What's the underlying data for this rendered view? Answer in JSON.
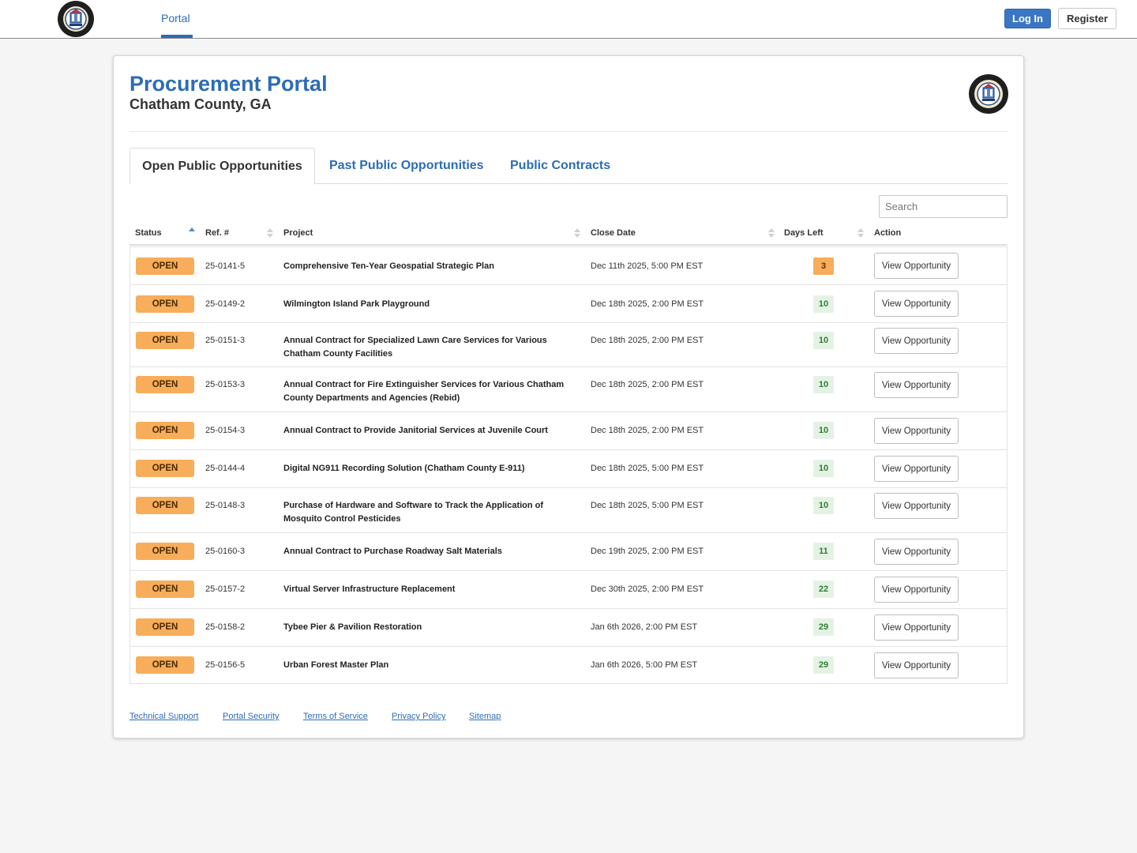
{
  "nav": {
    "portal_label": "Portal",
    "login_label": "Log In",
    "register_label": "Register"
  },
  "header": {
    "title": "Procurement Portal",
    "subtitle": "Chatham County, GA"
  },
  "tabs": [
    {
      "label": "Open Public Opportunities",
      "active": true
    },
    {
      "label": "Past Public Opportunities",
      "active": false
    },
    {
      "label": "Public Contracts",
      "active": false
    }
  ],
  "search": {
    "placeholder": "Search"
  },
  "table": {
    "columns": [
      "Status",
      "Ref. #",
      "Project",
      "Close Date",
      "Days Left",
      "Action"
    ],
    "sorted_column": "Status",
    "sort_direction": "ascending",
    "rows": [
      {
        "status": "OPEN",
        "ref": "25-0141-5",
        "project": "Comprehensive Ten-Year Geospatial Strategic Plan",
        "close_date": "Dec 11th 2025, 5:00 PM EST",
        "days_left": "3",
        "action": "View Opportunity"
      },
      {
        "status": "OPEN",
        "ref": "25-0149-2",
        "project": "Wilmington Island Park Playground",
        "close_date": "Dec 18th 2025, 2:00 PM EST",
        "days_left": "10",
        "action": "View Opportunity"
      },
      {
        "status": "OPEN",
        "ref": "25-0151-3",
        "project": "Annual Contract for Specialized Lawn Care Services for Various Chatham County Facilities",
        "close_date": "Dec 18th 2025, 2:00 PM EST",
        "days_left": "10",
        "action": "View Opportunity"
      },
      {
        "status": "OPEN",
        "ref": "25-0153-3",
        "project": "Annual Contract for Fire Extinguisher Services for Various Chatham County Departments and Agencies (Rebid)",
        "close_date": "Dec 18th 2025, 2:00 PM EST",
        "days_left": "10",
        "action": "View Opportunity"
      },
      {
        "status": "OPEN",
        "ref": "25-0154-3",
        "project": "Annual Contract to Provide Janitorial Services at Juvenile Court",
        "close_date": "Dec 18th 2025, 2:00 PM EST",
        "days_left": "10",
        "action": "View Opportunity"
      },
      {
        "status": "OPEN",
        "ref": "25-0144-4",
        "project": "Digital NG911 Recording Solution (Chatham County E-911)",
        "close_date": "Dec 18th 2025, 5:00 PM EST",
        "days_left": "10",
        "action": "View Opportunity"
      },
      {
        "status": "OPEN",
        "ref": "25-0148-3",
        "project": "Purchase of Hardware and Software to Track the Application of Mosquito Control Pesticides",
        "close_date": "Dec 18th 2025, 5:00 PM EST",
        "days_left": "10",
        "action": "View Opportunity"
      },
      {
        "status": "OPEN",
        "ref": "25-0160-3",
        "project": "Annual Contract to Purchase Roadway Salt Materials",
        "close_date": "Dec 19th 2025, 2:00 PM EST",
        "days_left": "11",
        "action": "View Opportunity"
      },
      {
        "status": "OPEN",
        "ref": "25-0157-2",
        "project": "Virtual Server Infrastructure Replacement",
        "close_date": "Dec 30th 2025, 2:00 PM EST",
        "days_left": "22",
        "action": "View Opportunity"
      },
      {
        "status": "OPEN",
        "ref": "25-0158-2",
        "project": "Tybee Pier & Pavilion Restoration",
        "close_date": "Jan 6th 2026, 2:00 PM EST",
        "days_left": "29",
        "action": "View Opportunity"
      },
      {
        "status": "OPEN",
        "ref": "25-0156-5",
        "project": "Urban Forest Master Plan",
        "close_date": "Jan 6th 2026, 5:00 PM EST",
        "days_left": "29",
        "action": "View Opportunity"
      }
    ]
  },
  "footer": {
    "links": [
      "Technical Support",
      "Portal Security",
      "Terms of Service",
      "Privacy Policy",
      "Sitemap"
    ]
  },
  "colors": {
    "brand_blue": "#2d6cb5",
    "status_open": "#f7ad5a",
    "days_urgent": "#f7ad5a",
    "days_ok": "#e4f2e4"
  }
}
